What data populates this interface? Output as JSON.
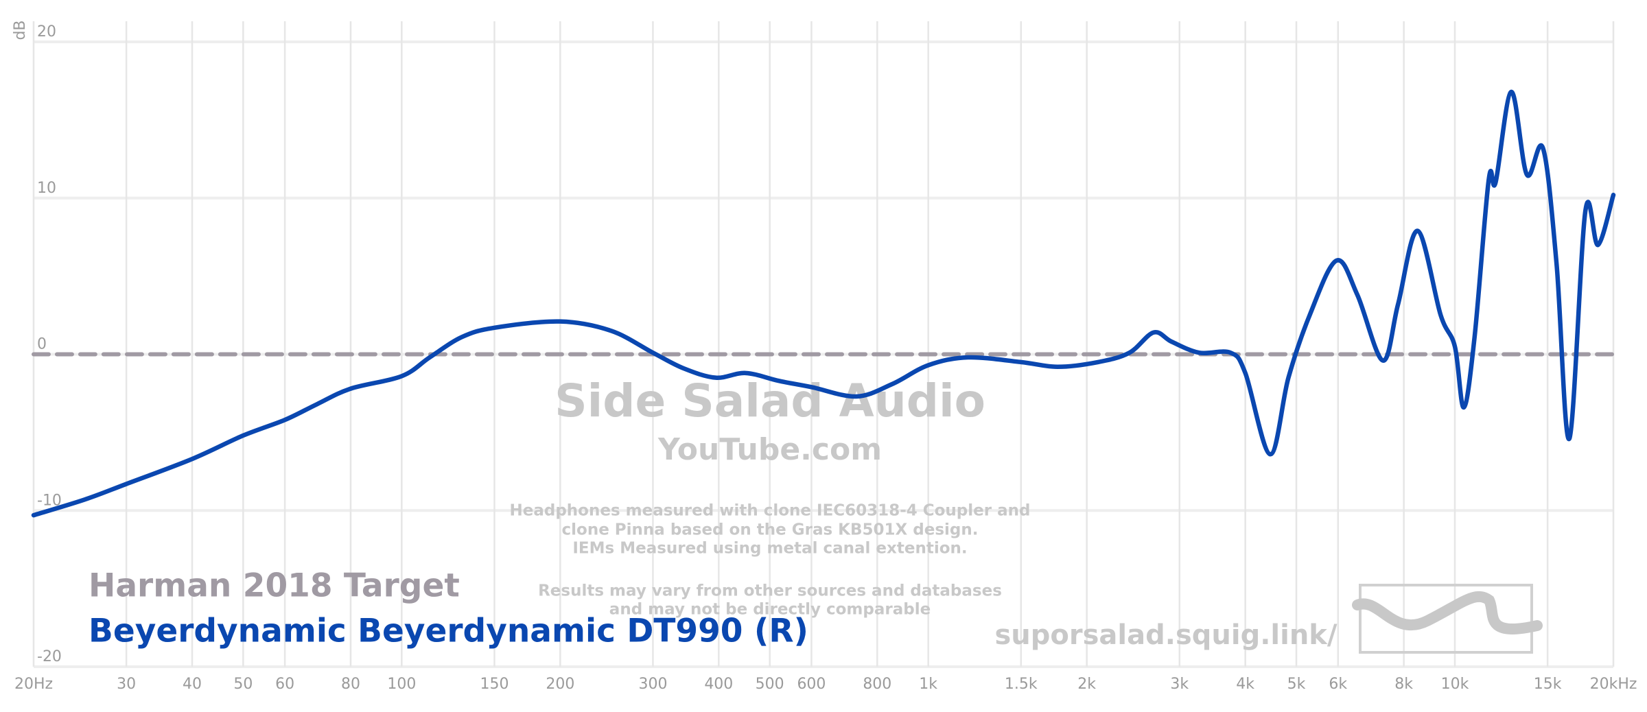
{
  "chart_data": {
    "type": "line",
    "y_label": "dB",
    "xscale": "log",
    "xlim": [
      20,
      20000
    ],
    "ylim": [
      -20,
      20
    ],
    "yticks": [
      20,
      10,
      0,
      -10,
      -20
    ],
    "xticks": [
      {
        "value": 20,
        "label": "20Hz"
      },
      30,
      40,
      50,
      60,
      80,
      100,
      150,
      200,
      300,
      400,
      500,
      600,
      800,
      {
        "value": 1000,
        "label": "1k"
      },
      {
        "value": 1500,
        "label": "1.5k"
      },
      {
        "value": 2000,
        "label": "2k"
      },
      {
        "value": 3000,
        "label": "3k"
      },
      {
        "value": 4000,
        "label": "4k"
      },
      {
        "value": 5000,
        "label": "5k"
      },
      {
        "value": 6000,
        "label": "6k"
      },
      {
        "value": 8000,
        "label": "8k"
      },
      {
        "value": 10000,
        "label": "10k"
      },
      {
        "value": 15000,
        "label": "15k"
      },
      {
        "value": 20000,
        "label": "20kHz"
      }
    ],
    "grid": true,
    "legend": "bottom-left",
    "series": [
      {
        "name": "Harman 2018 Target",
        "color": "#a09aa3",
        "dash": true,
        "x": [
          20,
          20000
        ],
        "values": [
          0,
          0
        ]
      },
      {
        "name": "Beyerdynamic Beyerdynamic DT990 (R)",
        "color": "#0a47b0",
        "x": [
          20,
          25,
          30,
          40,
          50,
          60,
          69,
          80,
          100,
          113,
          130,
          150,
          200,
          250,
          300,
          343,
          395,
          450,
          520,
          600,
          730,
          855,
          1000,
          1190,
          1500,
          1760,
          2100,
          2410,
          2680,
          2900,
          3270,
          3750,
          4000,
          4460,
          4830,
          5300,
          5960,
          6530,
          7300,
          7800,
          8500,
          9400,
          10000,
          10400,
          10900,
          11600,
          11950,
          12800,
          13700,
          14700,
          15600,
          16500,
          17700,
          18700,
          20000
        ],
        "values": [
          -10.3,
          -9.3,
          -8.3,
          -6.7,
          -5.2,
          -4.2,
          -3.2,
          -2.2,
          -1.4,
          -0.2,
          1.1,
          1.7,
          2.1,
          1.5,
          0.1,
          -0.9,
          -1.5,
          -1.2,
          -1.7,
          -2.1,
          -2.7,
          -1.9,
          -0.7,
          -0.2,
          -0.5,
          -0.8,
          -0.5,
          0.1,
          1.4,
          0.8,
          0.1,
          0.1,
          -1.2,
          -6.4,
          -1.5,
          2.5,
          6.0,
          3.8,
          -0.4,
          3.2,
          7.9,
          2.5,
          0.5,
          -3.4,
          1.1,
          11.2,
          11.0,
          16.8,
          11.5,
          13.2,
          5.8,
          -5.4,
          9.2,
          7.0,
          10.2
        ]
      }
    ],
    "annotations": [
      "Side Salad Audio",
      "YouTube.com",
      "Headphones measured with clone IEC60318-4 Coupler and",
      "clone Pinna based on the Gras KB501X design.",
      "IEMs Measured using metal canal extention.",
      "Results may vary from other sources and databases",
      "and may not be directly comparable",
      "suporsalad.squig.link/"
    ]
  }
}
